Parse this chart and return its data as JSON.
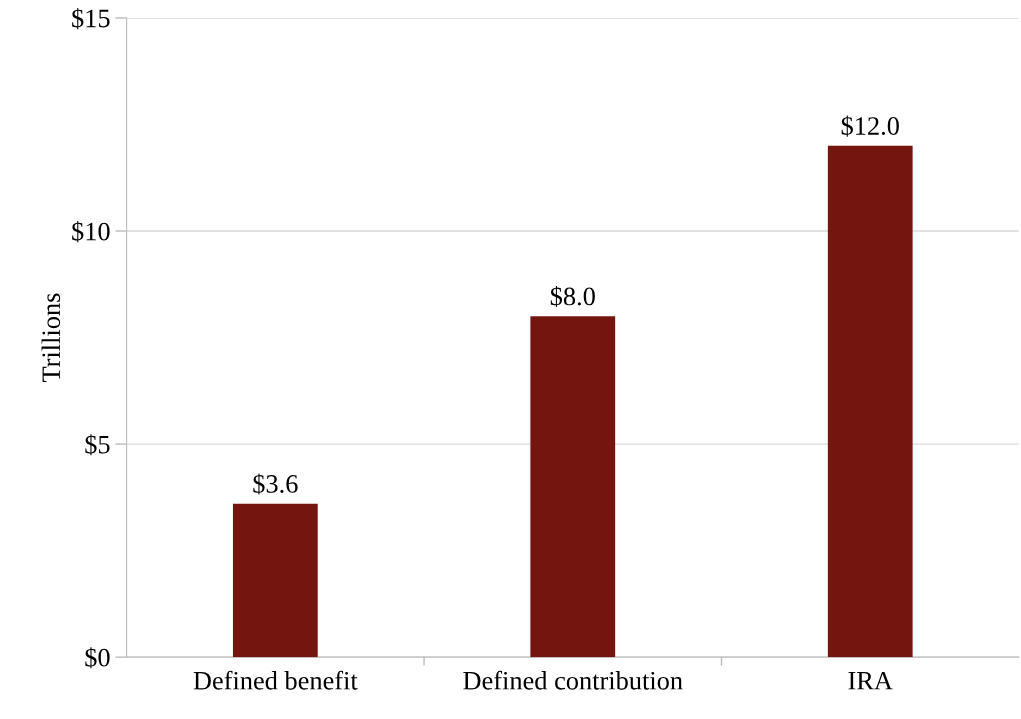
{
  "chart_data": {
    "type": "bar",
    "ylabel": "Trillions",
    "categories": [
      "Defined benefit",
      "Defined contribution",
      "IRA"
    ],
    "values": [
      3.6,
      8.0,
      12.0
    ],
    "value_labels": [
      "$3.6",
      "$8.0",
      "$12.0"
    ],
    "color": "#74150f",
    "ylim": [
      0,
      15
    ],
    "yticks": [
      {
        "value": 0,
        "label": "$0"
      },
      {
        "value": 5,
        "label": "$5"
      },
      {
        "value": 10,
        "label": "$10"
      },
      {
        "value": 15,
        "label": "$15"
      }
    ],
    "grid": "y",
    "legend": false
  }
}
